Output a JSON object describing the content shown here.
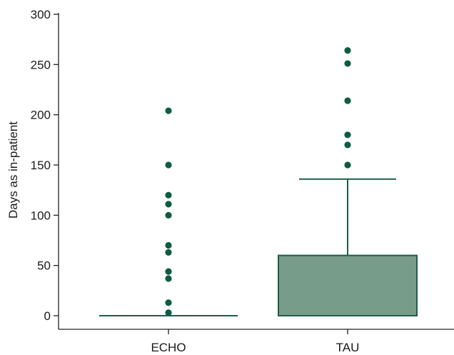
{
  "chart_data": {
    "type": "boxplot",
    "title": "",
    "xlabel": "",
    "ylabel": "Days as in-patient",
    "ylim": [
      0,
      300
    ],
    "yticks": [
      0,
      50,
      100,
      150,
      200,
      250,
      300
    ],
    "grid": false,
    "legend": "none",
    "categories": [
      "ECHO",
      "TAU"
    ],
    "boxes": [
      {
        "category": "ECHO",
        "q1": 0,
        "median": 0,
        "q3": 0,
        "whisker_low": 0,
        "whisker_high": 0,
        "outliers": [
          204,
          150,
          120,
          111,
          100,
          70,
          63,
          44,
          37,
          13,
          3
        ]
      },
      {
        "category": "TAU",
        "q1": 0,
        "median": 0,
        "q3": 60,
        "whisker_low": 0,
        "whisker_high": 136,
        "outliers": [
          264,
          251,
          214,
          180,
          170,
          150
        ]
      }
    ],
    "colors": {
      "box_fill": "#789c8a",
      "line": "#1e5e48",
      "outlier": "#0d5c42",
      "axis": "#222222"
    }
  }
}
